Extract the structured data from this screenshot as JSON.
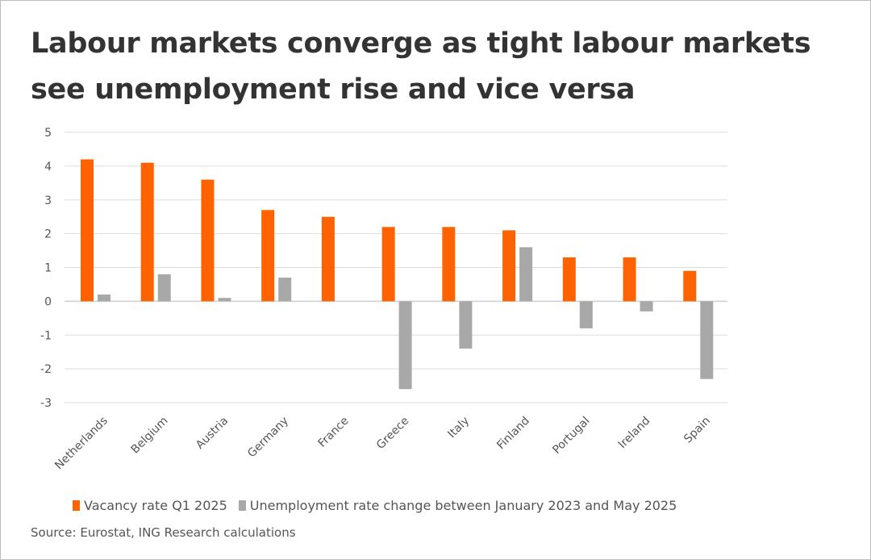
{
  "title": "Labour markets converge as tight labour markets see unemployment rise and vice versa",
  "source": "Source: Eurostat, ING Research calculations",
  "colors": {
    "vacancy": "#ff6200",
    "unemployment": "#a8a8a8",
    "grid": "#dedede",
    "zero": "#cfcfcf"
  },
  "chart_data": {
    "type": "bar",
    "title": "Labour markets converge as tight labour markets see unemployment rise and vice versa",
    "xlabel": "",
    "ylabel": "",
    "ylim": [
      -3,
      5
    ],
    "yticks": [
      5,
      4,
      3,
      2,
      1,
      0,
      -1,
      -2,
      -3
    ],
    "grid": true,
    "legend_position": "bottom",
    "categories": [
      "Netherlands",
      "Belgium",
      "Austria",
      "Germany",
      "France",
      "Greece",
      "Italy",
      "Finland",
      "Portugal",
      "Ireland",
      "Spain"
    ],
    "series": [
      {
        "name": "Vacancy rate Q1 2025",
        "color": "#ff6200",
        "values": [
          4.2,
          4.1,
          3.6,
          2.7,
          2.5,
          2.2,
          2.2,
          2.1,
          1.3,
          1.3,
          0.9
        ]
      },
      {
        "name": "Unemployment rate change between January 2023 and May 2025",
        "color": "#a8a8a8",
        "values": [
          0.2,
          0.8,
          0.1,
          0.7,
          0.0,
          -2.6,
          -1.4,
          1.6,
          -0.8,
          -0.3,
          -2.3
        ]
      }
    ]
  }
}
